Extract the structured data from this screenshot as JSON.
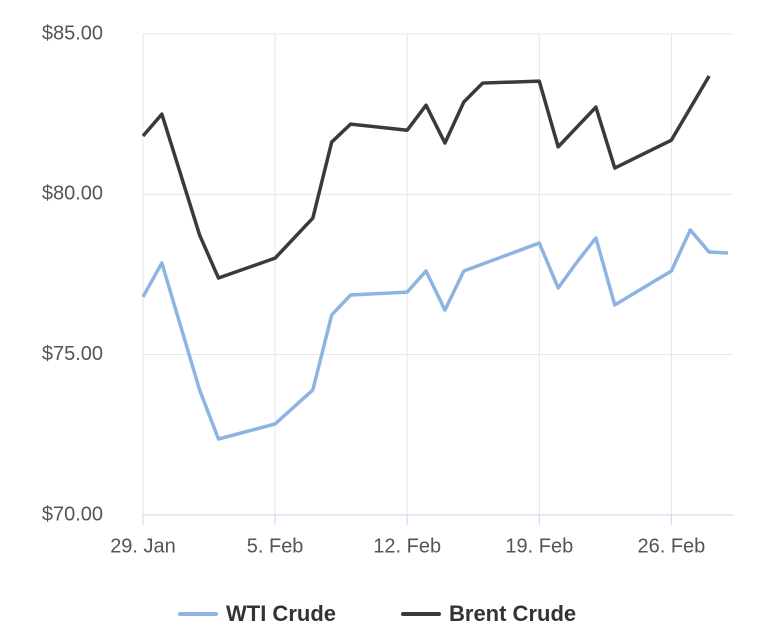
{
  "chart_data": {
    "type": "line",
    "series": [
      {
        "name": "WTI Crude",
        "color": "#8db4e2",
        "x": [
          "01-29",
          "01-30",
          "02-01",
          "02-02",
          "02-05",
          "02-07",
          "02-08",
          "02-09",
          "02-12",
          "02-13",
          "02-14",
          "02-15",
          "02-19",
          "02-20",
          "02-21",
          "02-22",
          "02-23",
          "02-26",
          "02-27",
          "02-28",
          "02-29"
        ],
        "values": [
          76.8,
          77.86,
          73.9,
          72.37,
          72.84,
          73.9,
          76.24,
          76.86,
          76.95,
          77.61,
          76.39,
          77.61,
          78.48,
          77.08,
          77.89,
          78.64,
          76.55,
          77.61,
          78.89,
          78.2,
          78.17
        ]
      },
      {
        "name": "Brent Crude",
        "color": "#3a3a3c",
        "x": [
          "01-29",
          "01-30",
          "02-01",
          "02-02",
          "02-05",
          "02-07",
          "02-08",
          "02-09",
          "02-12",
          "02-13",
          "02-14",
          "02-15",
          "02-16",
          "02-19",
          "02-20",
          "02-22",
          "02-23",
          "02-26",
          "02-28"
        ],
        "values": [
          81.82,
          82.5,
          78.73,
          77.39,
          78.01,
          79.26,
          81.63,
          82.19,
          82.0,
          82.78,
          81.6,
          82.88,
          83.47,
          83.53,
          81.48,
          82.72,
          80.82,
          81.69,
          83.69
        ]
      }
    ],
    "xlim": [
      "01-29",
      "02-29"
    ],
    "xticks": [
      {
        "value": "01-29",
        "label": "29. Jan"
      },
      {
        "value": "02-05",
        "label": "5. Feb"
      },
      {
        "value": "02-12",
        "label": "12. Feb"
      },
      {
        "value": "02-19",
        "label": "19. Feb"
      },
      {
        "value": "02-26",
        "label": "26. Feb"
      }
    ],
    "ylim": [
      70,
      85
    ],
    "yticks": [
      {
        "value": 70,
        "label": "$70.00"
      },
      {
        "value": 75,
        "label": "$75.00"
      },
      {
        "value": 80,
        "label": "$80.00"
      },
      {
        "value": 85,
        "label": "$85.00"
      }
    ],
    "grid": true,
    "legend": "bottom"
  }
}
